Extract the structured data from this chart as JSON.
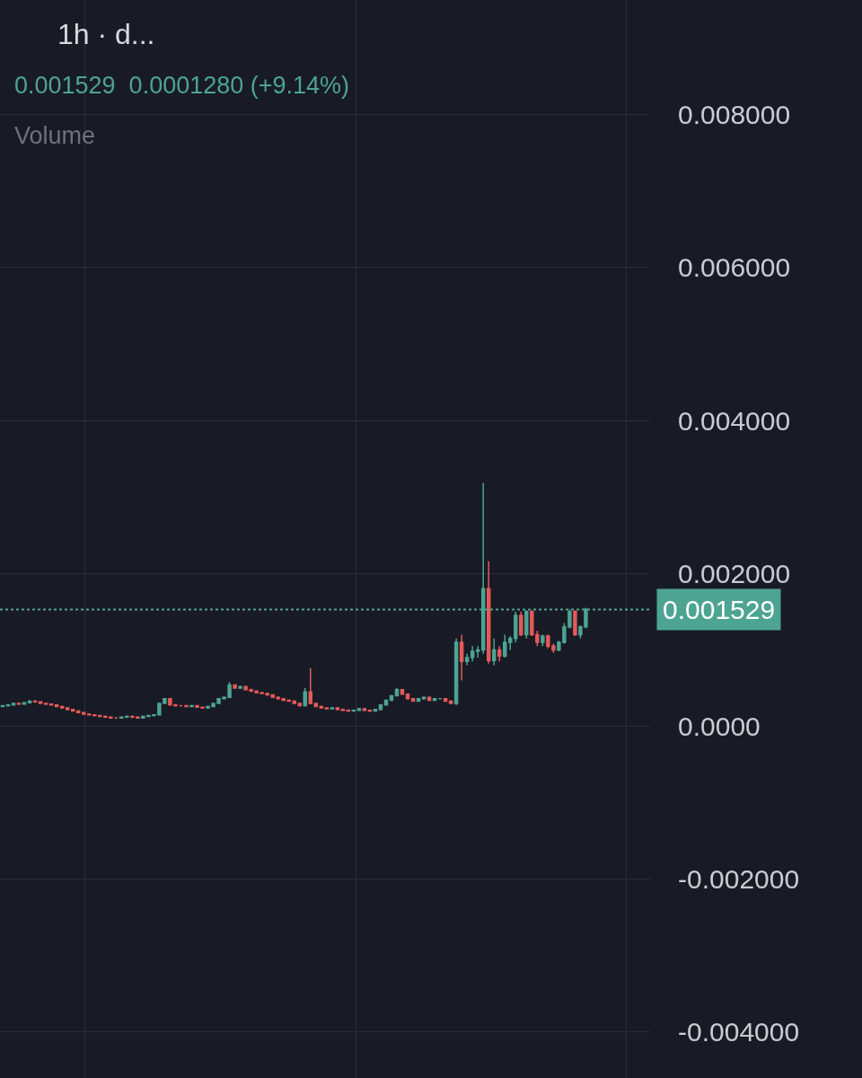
{
  "chart_data": {
    "type": "candlestick",
    "title": "1h · d...",
    "subtitle": "0.001529  0.0001280 (+9.14%)",
    "annotations": [
      "Volume"
    ],
    "categories": [
      null,
      null,
      null,
      null,
      null,
      null,
      null,
      null,
      null,
      null,
      null,
      null,
      null,
      null,
      null,
      null,
      null,
      null,
      null,
      null,
      null,
      null,
      null,
      null,
      null,
      null,
      null,
      null,
      null,
      null,
      null,
      null,
      null,
      null,
      null,
      null,
      null,
      null,
      null,
      null,
      null,
      null,
      null,
      null,
      null,
      null,
      null,
      null,
      null,
      null,
      null,
      null,
      null,
      null,
      null,
      null,
      null,
      null,
      null,
      null,
      null,
      null,
      null,
      null,
      null,
      null,
      null,
      null,
      null,
      null,
      null,
      null,
      null,
      null,
      null,
      null,
      null,
      null,
      null,
      null,
      null,
      null,
      null,
      null,
      null,
      null,
      null,
      null,
      null,
      null,
      null,
      null,
      null,
      null,
      null,
      null,
      null,
      null,
      null,
      null,
      null,
      null,
      null,
      null,
      null,
      null,
      null,
      null,
      null
    ],
    "ohlc": [
      [
        0.00026,
        0.00028,
        0.00025,
        0.00027
      ],
      [
        0.00027,
        0.00029,
        0.00026,
        0.00028
      ],
      [
        0.00028,
        0.00031,
        0.00027,
        0.0003
      ],
      [
        0.0003,
        0.00031,
        0.00028,
        0.00029
      ],
      [
        0.00029,
        0.00032,
        0.00028,
        0.00031
      ],
      [
        0.00031,
        0.00034,
        0.0003,
        0.00033
      ],
      [
        0.00033,
        0.00034,
        0.00031,
        0.00032
      ],
      [
        0.00032,
        0.00033,
        0.00029,
        0.0003
      ],
      [
        0.0003,
        0.00031,
        0.00028,
        0.00029
      ],
      [
        0.00029,
        0.0003,
        0.00027,
        0.00028
      ],
      [
        0.00028,
        0.00029,
        0.00025,
        0.00026
      ],
      [
        0.00026,
        0.00027,
        0.00023,
        0.00024
      ],
      [
        0.00024,
        0.00025,
        0.00021,
        0.00022
      ],
      [
        0.00022,
        0.00023,
        0.00019,
        0.0002
      ],
      [
        0.0002,
        0.00021,
        0.00017,
        0.00018
      ],
      [
        0.00018,
        0.00019,
        0.00015,
        0.00016
      ],
      [
        0.00016,
        0.00017,
        0.00014,
        0.00015
      ],
      [
        0.00015,
        0.00016,
        0.00013,
        0.00014
      ],
      [
        0.00014,
        0.00015,
        0.00012,
        0.00013
      ],
      [
        0.00013,
        0.00014,
        0.00011,
        0.00012
      ],
      [
        0.00012,
        0.00013,
        0.0001,
        0.00011
      ],
      [
        0.00011,
        0.00012,
        0.0001,
        0.00011
      ],
      [
        0.00011,
        0.00013,
        0.0001,
        0.00012
      ],
      [
        0.00012,
        0.00014,
        0.00011,
        0.00013
      ],
      [
        0.00013,
        0.00014,
        0.00011,
        0.00012
      ],
      [
        0.00012,
        0.00013,
        0.0001,
        0.00011
      ],
      [
        0.00011,
        0.00014,
        0.0001,
        0.00013
      ],
      [
        0.00013,
        0.00015,
        0.00012,
        0.00014
      ],
      [
        0.00014,
        0.00016,
        0.00013,
        0.00015
      ],
      [
        0.00015,
        0.00031,
        0.00014,
        0.0003
      ],
      [
        0.0003,
        0.00037,
        0.00029,
        0.00036
      ],
      [
        0.00036,
        0.00037,
        0.00027,
        0.00028
      ],
      [
        0.00028,
        0.00029,
        0.00026,
        0.00027
      ],
      [
        0.00027,
        0.00028,
        0.00026,
        0.00027
      ],
      [
        0.00027,
        0.00028,
        0.00025,
        0.00026
      ],
      [
        0.00026,
        0.00028,
        0.00025,
        0.00027
      ],
      [
        0.00027,
        0.00028,
        0.00024,
        0.00025
      ],
      [
        0.00025,
        0.00026,
        0.00023,
        0.00024
      ],
      [
        0.00024,
        0.00027,
        0.00023,
        0.00026
      ],
      [
        0.00026,
        0.00031,
        0.00025,
        0.0003
      ],
      [
        0.0003,
        0.00037,
        0.00029,
        0.00036
      ],
      [
        0.00036,
        0.00039,
        0.00035,
        0.00038
      ],
      [
        0.00038,
        0.00058,
        0.00037,
        0.00054
      ],
      [
        0.00054,
        0.00055,
        0.00049,
        0.0005
      ],
      [
        0.0005,
        0.00053,
        0.00049,
        0.00052
      ],
      [
        0.00052,
        0.00053,
        0.00047,
        0.00048
      ],
      [
        0.00048,
        0.00049,
        0.00045,
        0.00046
      ],
      [
        0.00046,
        0.00047,
        0.00043,
        0.00044
      ],
      [
        0.00044,
        0.00045,
        0.00042,
        0.00043
      ],
      [
        0.00043,
        0.00044,
        0.0004,
        0.00041
      ],
      [
        0.00041,
        0.00042,
        0.00037,
        0.00038
      ],
      [
        0.00038,
        0.00039,
        0.00035,
        0.00036
      ],
      [
        0.00036,
        0.00037,
        0.00033,
        0.00034
      ],
      [
        0.00034,
        0.00035,
        0.00032,
        0.00033
      ],
      [
        0.00033,
        0.00034,
        0.00029,
        0.0003
      ],
      [
        0.0003,
        0.00031,
        0.00026,
        0.00027
      ],
      [
        0.00027,
        0.0005,
        0.00026,
        0.00045
      ],
      [
        0.00045,
        0.00076,
        0.00029,
        0.0003
      ],
      [
        0.0003,
        0.00031,
        0.00025,
        0.00026
      ],
      [
        0.00026,
        0.00027,
        0.00023,
        0.00024
      ],
      [
        0.00024,
        0.00025,
        0.00022,
        0.00023
      ],
      [
        0.00023,
        0.00025,
        0.00022,
        0.00024
      ],
      [
        0.00024,
        0.00025,
        0.00021,
        0.00022
      ],
      [
        0.00022,
        0.00023,
        0.0002,
        0.00021
      ],
      [
        0.00021,
        0.00022,
        0.00019,
        0.0002
      ],
      [
        0.0002,
        0.00022,
        0.00019,
        0.00021
      ],
      [
        0.00021,
        0.00024,
        0.0002,
        0.00023
      ],
      [
        0.00023,
        0.00024,
        0.0002,
        0.00021
      ],
      [
        0.00021,
        0.00022,
        0.00019,
        0.0002
      ],
      [
        0.0002,
        0.00023,
        0.00019,
        0.00022
      ],
      [
        0.00022,
        0.00029,
        0.00021,
        0.00028
      ],
      [
        0.00028,
        0.00035,
        0.00027,
        0.00034
      ],
      [
        0.00034,
        0.00041,
        0.00033,
        0.0004
      ],
      [
        0.0004,
        0.0005,
        0.00039,
        0.00048
      ],
      [
        0.00048,
        0.00049,
        0.00041,
        0.00042
      ],
      [
        0.00042,
        0.00043,
        0.00035,
        0.00036
      ],
      [
        0.00036,
        0.00037,
        0.00032,
        0.00033
      ],
      [
        0.00033,
        0.00037,
        0.00032,
        0.00036
      ],
      [
        0.00036,
        0.00039,
        0.00035,
        0.00038
      ],
      [
        0.00038,
        0.00039,
        0.00033,
        0.00034
      ],
      [
        0.00034,
        0.00037,
        0.00033,
        0.00036
      ],
      [
        0.00036,
        0.00037,
        0.00035,
        0.00036
      ],
      [
        0.00036,
        0.00037,
        0.00032,
        0.00033
      ],
      [
        0.00033,
        0.00034,
        0.00029,
        0.0003
      ],
      [
        0.0003,
        0.00115,
        0.00028,
        0.0011
      ],
      [
        0.0011,
        0.0012,
        0.0006,
        0.00085
      ],
      [
        0.00085,
        0.00095,
        0.0008,
        0.0009
      ],
      [
        0.0009,
        0.00105,
        0.00085,
        0.00098
      ],
      [
        0.00098,
        0.00105,
        0.0009,
        0.001
      ],
      [
        0.001,
        0.00318,
        0.00095,
        0.0018
      ],
      [
        0.0018,
        0.00216,
        0.00082,
        0.00086
      ],
      [
        0.00086,
        0.00115,
        0.0008,
        0.001
      ],
      [
        0.001,
        0.00105,
        0.00085,
        0.00092
      ],
      [
        0.00092,
        0.0012,
        0.0009,
        0.0011
      ],
      [
        0.0011,
        0.00118,
        0.001,
        0.00115
      ],
      [
        0.00115,
        0.0015,
        0.0011,
        0.00145
      ],
      [
        0.00145,
        0.0015,
        0.00118,
        0.0012
      ],
      [
        0.0012,
        0.00152,
        0.00115,
        0.0015
      ],
      [
        0.0015,
        0.00152,
        0.00118,
        0.0012
      ],
      [
        0.0012,
        0.00125,
        0.00105,
        0.0011
      ],
      [
        0.0011,
        0.0012,
        0.00105,
        0.00118
      ],
      [
        0.00118,
        0.0012,
        0.00102,
        0.00105
      ],
      [
        0.00105,
        0.00108,
        0.00096,
        0.001
      ],
      [
        0.001,
        0.00112,
        0.00098,
        0.0011
      ],
      [
        0.0011,
        0.00135,
        0.00108,
        0.0013
      ],
      [
        0.0013,
        0.00153,
        0.00128,
        0.0015
      ],
      [
        0.0015,
        0.00152,
        0.00118,
        0.0012
      ],
      [
        0.0012,
        0.00132,
        0.00115,
        0.0013
      ],
      [
        0.0013,
        0.00155,
        0.00128,
        0.00153
      ]
    ],
    "ylim": [
      -0.0046,
      0.0095
    ],
    "yticks": [
      {
        "value": 0.008,
        "label": "0.008000"
      },
      {
        "value": 0.006,
        "label": "0.006000"
      },
      {
        "value": 0.004,
        "label": "0.004000"
      },
      {
        "value": 0.002,
        "label": "0.002000"
      },
      {
        "value": 0,
        "label": "0.0000"
      },
      {
        "value": -0.002,
        "label": "-0.002000"
      },
      {
        "value": -0.004,
        "label": "-0.004000"
      }
    ],
    "ref_lines": [
      {
        "axis": "y",
        "value": 0.001529,
        "label": "0.001529",
        "color": "#4da492",
        "line_style": "dotted"
      }
    ],
    "grid": true,
    "tick_labels": "y"
  }
}
